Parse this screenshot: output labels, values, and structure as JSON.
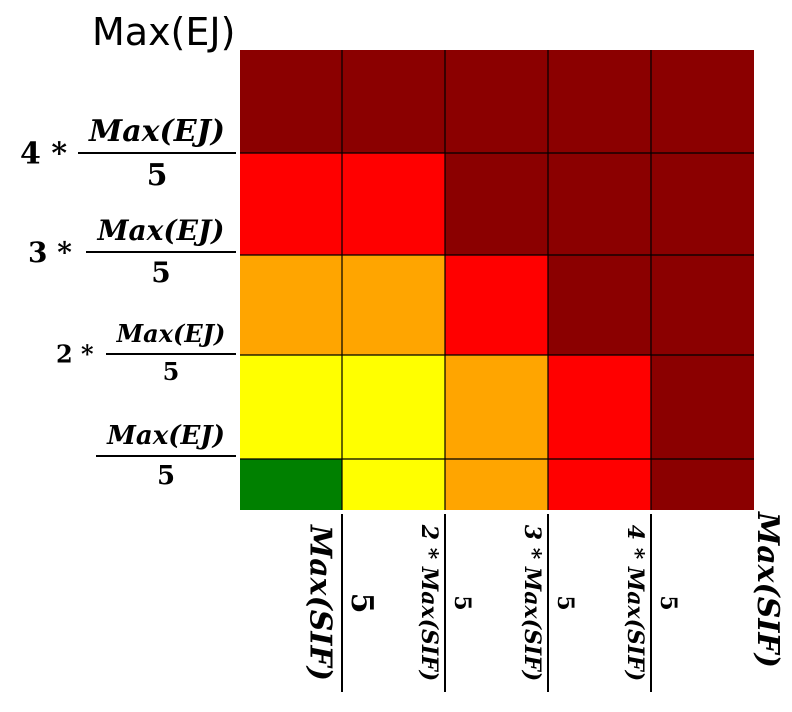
{
  "chart_data": {
    "type": "heatmap",
    "y_axis_title": "Max(EJ)",
    "x_axis_title": "Max(SIF)",
    "rows_top_to_bottom": [
      [
        "#8b0000",
        "#8b0000",
        "#8b0000",
        "#8b0000",
        "#8b0000"
      ],
      [
        "#ff0000",
        "#ff0000",
        "#8b0000",
        "#8b0000",
        "#8b0000"
      ],
      [
        "#ffa500",
        "#ffa500",
        "#ff0000",
        "#8b0000",
        "#8b0000"
      ],
      [
        "#ffff00",
        "#ffff00",
        "#ffa500",
        "#ff0000",
        "#8b0000"
      ],
      [
        "#008000",
        "#ffff00",
        "#ffa500",
        "#ff0000",
        "#8b0000"
      ]
    ],
    "y_ticks": [
      {
        "coef": "4 *",
        "num": "Max(EJ)",
        "den": "5"
      },
      {
        "coef": "3 *",
        "num": "Max(EJ)",
        "den": "5"
      },
      {
        "coef": "2 *",
        "num": "Max(EJ)",
        "den": "5"
      },
      {
        "coef": "",
        "num": "Max(EJ)",
        "den": "5"
      }
    ],
    "x_ticks": [
      {
        "coef": "",
        "num": "Max(SIF)",
        "den": "5"
      },
      {
        "coef": "2 *",
        "num": "Max(SIF)",
        "den": "5"
      },
      {
        "coef": "3 *",
        "num": "Max(SIF)",
        "den": "5"
      },
      {
        "coef": "4 *",
        "num": "Max(SIF)",
        "den": "5"
      }
    ],
    "colors": {
      "dark_red": "#8b0000",
      "red": "#ff0000",
      "orange": "#ffa500",
      "yellow": "#ffff00",
      "green": "#008000",
      "grid_line": "#000000"
    }
  }
}
